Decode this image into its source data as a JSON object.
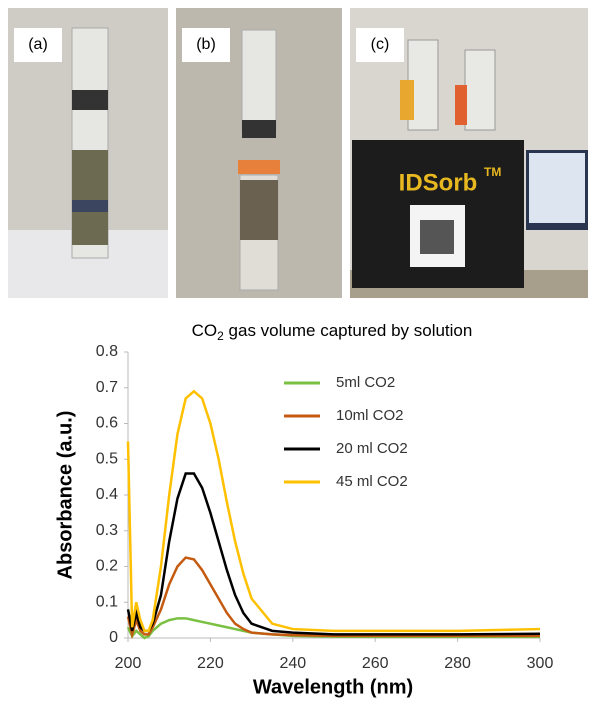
{
  "photos": {
    "panels": [
      "(a)",
      "(b)",
      "(c)"
    ],
    "device_name": "IDSorb",
    "device_mark": "TM"
  },
  "chart_data": {
    "type": "line",
    "title": {
      "main": "CO",
      "sub": "2",
      "rest": " gas volume captured by solution"
    },
    "x_label": "Wavelength (nm)",
    "y_label": "Absorbance (a.u.)",
    "xlim": [
      200,
      300
    ],
    "xticks": [
      200,
      220,
      240,
      260,
      280,
      300
    ],
    "ylim": [
      0,
      0.8
    ],
    "yticks": [
      0,
      0.1,
      0.2,
      0.3,
      0.4,
      0.5,
      0.6,
      0.7,
      0.8
    ],
    "legend": "upper center",
    "x": [
      200,
      201,
      202,
      203,
      204,
      205,
      206,
      208,
      210,
      212,
      214,
      216,
      218,
      220,
      222,
      224,
      226,
      228,
      230,
      235,
      240,
      250,
      260,
      280,
      300
    ],
    "series": [
      {
        "name": "5ml CO2",
        "color": "#7ac143",
        "values": [
          0.03,
          0.005,
          0.02,
          0.01,
          0.0,
          0.005,
          0.02,
          0.04,
          0.05,
          0.055,
          0.055,
          0.05,
          0.045,
          0.04,
          0.035,
          0.03,
          0.025,
          0.02,
          0.015,
          0.01,
          0.006,
          0.004,
          0.003,
          0.003,
          0.003
        ]
      },
      {
        "name": "10ml CO2",
        "color": "#c55a11",
        "values": [
          0.06,
          0.01,
          0.05,
          0.02,
          0.01,
          0.01,
          0.03,
          0.08,
          0.15,
          0.2,
          0.225,
          0.22,
          0.19,
          0.15,
          0.11,
          0.07,
          0.04,
          0.025,
          0.015,
          0.01,
          0.008,
          0.006,
          0.006,
          0.006,
          0.006
        ]
      },
      {
        "name": "20 ml CO2",
        "color": "#000000",
        "values": [
          0.08,
          0.02,
          0.07,
          0.03,
          0.02,
          0.02,
          0.04,
          0.12,
          0.27,
          0.39,
          0.46,
          0.46,
          0.42,
          0.35,
          0.27,
          0.19,
          0.12,
          0.07,
          0.04,
          0.02,
          0.015,
          0.01,
          0.01,
          0.01,
          0.012
        ]
      },
      {
        "name": "45 ml CO2",
        "color": "#ffc000",
        "values": [
          0.55,
          0.03,
          0.1,
          0.05,
          0.02,
          0.02,
          0.05,
          0.2,
          0.4,
          0.57,
          0.67,
          0.69,
          0.67,
          0.6,
          0.5,
          0.38,
          0.27,
          0.18,
          0.11,
          0.04,
          0.025,
          0.02,
          0.02,
          0.02,
          0.025
        ]
      }
    ]
  }
}
